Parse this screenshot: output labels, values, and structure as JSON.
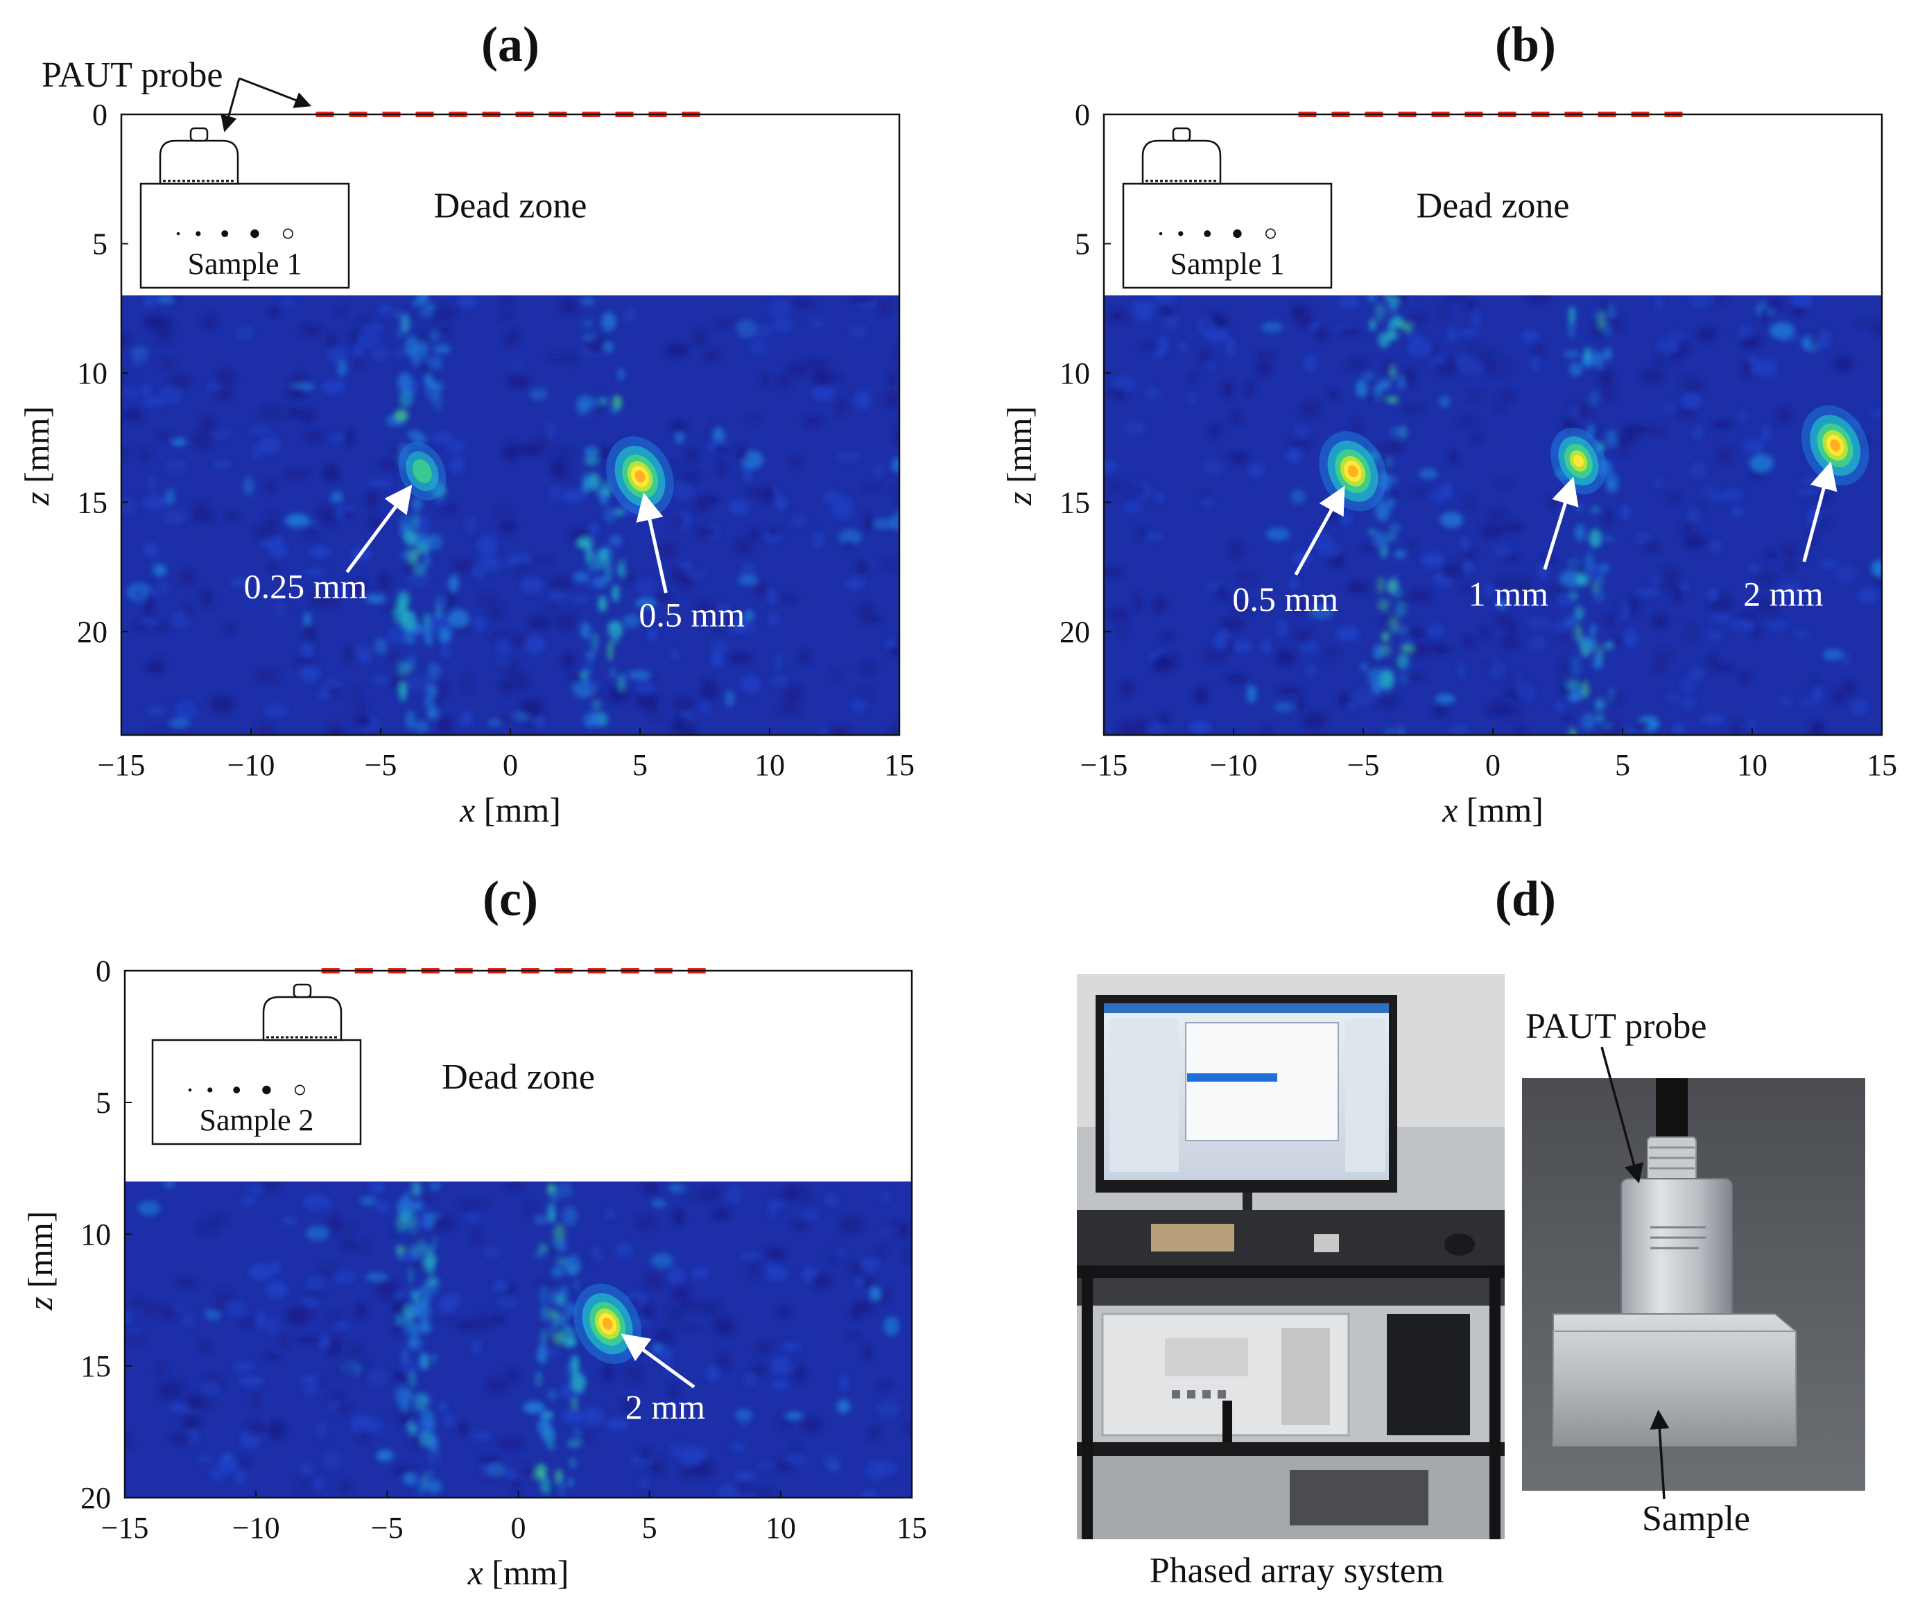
{
  "colors": {
    "background": "#1c2fa8",
    "colormap": [
      "#1a1f8c",
      "#1e3fc4",
      "#1f78d8",
      "#22b3c7",
      "#3fd08a",
      "#b7e23a",
      "#ffe83a",
      "#ffb020"
    ],
    "array_marker": "#e8241a",
    "annotation": "#ffffff"
  },
  "chart_data": [
    {
      "id": "a",
      "type": "heatmap",
      "panel_label": "(a)",
      "xlabel": "x [mm]",
      "ylabel": "z [mm]",
      "xlim": [
        -15,
        15
      ],
      "ylim": [
        0,
        24
      ],
      "y_inverted": true,
      "xticks": [
        "−15",
        "−10",
        "−5",
        "0",
        "5",
        "10",
        "15"
      ],
      "xtick_values": [
        -15,
        -10,
        -5,
        0,
        5,
        10,
        15
      ],
      "yticks": [
        "0",
        "5",
        "10",
        "15",
        "20"
      ],
      "ytick_values": [
        0,
        5,
        10,
        15,
        20
      ],
      "dead_zone": {
        "z_max": 7,
        "label": "Dead zone"
      },
      "array_extent": [
        -7.5,
        7.5
      ],
      "probe_label": "PAUT probe",
      "sample_label": "Sample 1",
      "seed": 11,
      "streaks": [
        -3.5,
        3.5
      ],
      "defects": [
        {
          "x": -3.4,
          "z": 13.8,
          "amp": 0.42,
          "label": "0.25 mm",
          "label_x": -7.9,
          "label_z": 18.7,
          "arrow_from": [
            -6.3,
            17.7
          ]
        },
        {
          "x": 5.0,
          "z": 14.0,
          "amp": 1.0,
          "label": "0.5 mm",
          "label_x": 7.0,
          "label_z": 19.8,
          "arrow_from": [
            6.0,
            18.5
          ]
        }
      ]
    },
    {
      "id": "b",
      "type": "heatmap",
      "panel_label": "(b)",
      "xlabel": "x [mm]",
      "ylabel": "z [mm]",
      "xlim": [
        -15,
        15
      ],
      "ylim": [
        0,
        24
      ],
      "y_inverted": true,
      "xticks": [
        "−15",
        "−10",
        "−5",
        "0",
        "5",
        "10",
        "15"
      ],
      "xtick_values": [
        -15,
        -10,
        -5,
        0,
        5,
        10,
        15
      ],
      "yticks": [
        "0",
        "5",
        "10",
        "15",
        "20"
      ],
      "ytick_values": [
        0,
        5,
        10,
        15,
        20
      ],
      "dead_zone": {
        "z_max": 7,
        "label": "Dead zone"
      },
      "array_extent": [
        -7.5,
        7.5
      ],
      "probe_label": "",
      "sample_label": "Sample 1",
      "seed": 23,
      "streaks": [
        -4.0,
        3.8
      ],
      "defects": [
        {
          "x": -5.4,
          "z": 13.8,
          "amp": 1.0,
          "label": "0.5 mm",
          "label_x": -8.0,
          "label_z": 19.2,
          "arrow_from": [
            -7.6,
            17.8
          ]
        },
        {
          "x": 3.3,
          "z": 13.4,
          "amp": 0.75,
          "label": "1 mm",
          "label_x": 0.6,
          "label_z": 19.0,
          "arrow_from": [
            2.0,
            17.6
          ]
        },
        {
          "x": 13.2,
          "z": 12.8,
          "amp": 1.0,
          "label": "2 mm",
          "label_x": 11.2,
          "label_z": 19.0,
          "arrow_from": [
            12.0,
            17.3
          ]
        }
      ]
    },
    {
      "id": "c",
      "type": "heatmap",
      "panel_label": "(c)",
      "xlabel": "x [mm]",
      "ylabel": "z [mm]",
      "xlim": [
        -15,
        15
      ],
      "ylim": [
        0,
        20
      ],
      "y_inverted": true,
      "xticks": [
        "−15",
        "−10",
        "−5",
        "0",
        "5",
        "10",
        "15"
      ],
      "xtick_values": [
        -15,
        -10,
        -5,
        0,
        5,
        10,
        15
      ],
      "yticks": [
        "0",
        "5",
        "10",
        "15",
        "20"
      ],
      "ytick_values": [
        0,
        5,
        10,
        15,
        20
      ],
      "dead_zone": {
        "z_max": 8,
        "label": "Dead zone"
      },
      "array_extent": [
        -7.5,
        7.5
      ],
      "probe_label": "",
      "sample_label": "Sample 2",
      "seed": 37,
      "streaks": [
        -3.8,
        1.5
      ],
      "defects": [
        {
          "x": 3.4,
          "z": 13.4,
          "amp": 1.0,
          "label": "2 mm",
          "label_x": 5.6,
          "label_z": 17.0,
          "arrow_from": [
            6.7,
            15.8
          ]
        }
      ]
    }
  ],
  "panel_d": {
    "panel_label": "(d)",
    "system_caption": "Phased array system",
    "probe_label": "PAUT probe",
    "sample_label": "Sample"
  }
}
